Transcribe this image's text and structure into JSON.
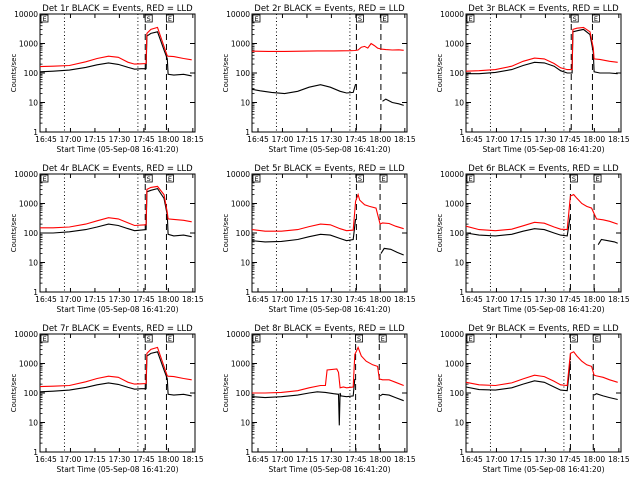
{
  "figure": {
    "x_ticks": [
      "16:45",
      "17:00",
      "17:15",
      "17:30",
      "17:45",
      "18:00",
      "18:15"
    ],
    "y_ticks": [
      "1",
      "10",
      "100",
      "1000",
      "10000"
    ],
    "ylabel": "Counts/sec",
    "xlabel": "Start Time (05-Sep-08 16:41:20)",
    "marker_labels": [
      "S",
      "E"
    ],
    "colors": {
      "events": "#000000",
      "lld": "#ff0000"
    }
  },
  "chart_data": [
    {
      "type": "line",
      "title": "Det 1r BLACK = Events, RED = LLD",
      "xlabel": "Start Time (05-Sep-08 16:41:20)",
      "ylabel": "Counts/sec",
      "x_unit": "minutes after 16:41:20",
      "xlim": [
        0,
        95
      ],
      "ylim": [
        1,
        10000
      ],
      "ylog": true,
      "series": [
        {
          "name": "Events",
          "x": [
            0,
            8,
            18,
            28,
            35,
            42,
            48,
            54,
            58,
            62,
            65,
            65.5,
            68,
            72,
            76,
            78,
            78.5,
            82,
            88,
            93
          ],
          "y": [
            110,
            115,
            125,
            155,
            190,
            220,
            195,
            155,
            135,
            140,
            140,
            1800,
            2200,
            2500,
            600,
            300,
            90,
            85,
            90,
            80
          ]
        },
        {
          "name": "LLD",
          "x": [
            0,
            8,
            18,
            28,
            35,
            42,
            48,
            54,
            58,
            62,
            65,
            65.5,
            68,
            72,
            76,
            78,
            78.5,
            82,
            88,
            93
          ],
          "y": [
            165,
            170,
            180,
            240,
            310,
            370,
            340,
            230,
            200,
            205,
            210,
            2200,
            3000,
            3500,
            800,
            380,
            370,
            360,
            310,
            280
          ]
        }
      ],
      "markers": {
        "dotted_x": [
          15,
          60
        ],
        "dashed_x": [
          64.5,
          77.5
        ],
        "S_x": 64.5,
        "E_x": 77.5
      }
    },
    {
      "type": "line",
      "title": "Det 2r BLACK = Events, RED = LLD",
      "xlabel": "Start Time (05-Sep-08 16:41:20)",
      "ylabel": "Counts/sec",
      "x_unit": "minutes after 16:41:20",
      "xlim": [
        0,
        95
      ],
      "ylim": [
        1,
        10000
      ],
      "ylog": true,
      "series": [
        {
          "name": "Events",
          "x": [
            0,
            5,
            12,
            20,
            28,
            35,
            42,
            48,
            54,
            58,
            62,
            63.5
          ],
          "y": [
            28,
            25,
            22,
            20,
            24,
            33,
            40,
            33,
            24,
            21,
            22,
            42
          ]
        },
        {
          "name": "Events (after)",
          "x": [
            80,
            82,
            86,
            90,
            93
          ],
          "y": [
            11,
            13,
            10,
            9,
            8
          ]
        },
        {
          "name": "LLD",
          "x": [
            0,
            10,
            20,
            30,
            40,
            50,
            60,
            63,
            65,
            67,
            69,
            71,
            73,
            75,
            77,
            79,
            82,
            86,
            90,
            93
          ],
          "y": [
            550,
            540,
            540,
            550,
            560,
            560,
            570,
            580,
            600,
            750,
            800,
            700,
            1000,
            850,
            700,
            650,
            620,
            600,
            610,
            590
          ]
        }
      ],
      "markers": {
        "dotted_x": [
          15,
          60
        ],
        "dashed_x": [
          64,
          79
        ],
        "S_x": 64,
        "E_x": 79
      }
    },
    {
      "type": "line",
      "title": "Det 3r BLACK = Events, RED = LLD",
      "xlabel": "Start Time (05-Sep-08 16:41:20)",
      "ylabel": "Counts/sec",
      "x_unit": "minutes after 16:41:20",
      "xlim": [
        0,
        95
      ],
      "ylim": [
        1,
        10000
      ],
      "ylog": true,
      "series": [
        {
          "name": "Events",
          "x": [
            0,
            8,
            18,
            28,
            35,
            42,
            48,
            54,
            58,
            62,
            65,
            65.5,
            68,
            72,
            76,
            78,
            78.5,
            82,
            88,
            93
          ],
          "y": [
            95,
            95,
            105,
            130,
            180,
            230,
            220,
            170,
            120,
            100,
            100,
            2500,
            2700,
            3000,
            2000,
            500,
            110,
            100,
            100,
            95
          ]
        },
        {
          "name": "LLD",
          "x": [
            0,
            8,
            18,
            28,
            35,
            42,
            48,
            54,
            58,
            62,
            65,
            65.5,
            68,
            72,
            76,
            78,
            78.5,
            82,
            88,
            93
          ],
          "y": [
            115,
            120,
            130,
            170,
            250,
            320,
            300,
            210,
            150,
            130,
            130,
            3000,
            3300,
            3500,
            2500,
            700,
            300,
            290,
            250,
            230
          ]
        }
      ],
      "markers": {
        "dotted_x": [
          15,
          60
        ],
        "dashed_x": [
          64.5,
          77.5
        ],
        "S_x": 64.5,
        "E_x": 77.5
      }
    },
    {
      "type": "line",
      "title": "Det 4r BLACK = Events, RED = LLD",
      "xlabel": "Start Time (05-Sep-08 16:41:20)",
      "ylabel": "Counts/sec",
      "x_unit": "minutes after 16:41:20",
      "xlim": [
        0,
        95
      ],
      "ylim": [
        1,
        10000
      ],
      "ylog": true,
      "series": [
        {
          "name": "Events",
          "x": [
            0,
            8,
            18,
            28,
            35,
            42,
            48,
            54,
            58,
            62,
            65,
            65.5,
            68,
            72,
            76,
            78,
            78.5,
            82,
            88,
            93
          ],
          "y": [
            100,
            100,
            110,
            130,
            160,
            200,
            180,
            140,
            120,
            125,
            130,
            2500,
            2800,
            3200,
            1500,
            400,
            90,
            80,
            85,
            75
          ]
        },
        {
          "name": "LLD",
          "x": [
            0,
            8,
            18,
            28,
            35,
            42,
            48,
            54,
            58,
            62,
            65,
            65.5,
            68,
            72,
            76,
            78,
            78.5,
            82,
            88,
            93
          ],
          "y": [
            150,
            150,
            160,
            200,
            260,
            330,
            300,
            220,
            180,
            185,
            190,
            3000,
            3500,
            3800,
            2000,
            500,
            300,
            290,
            270,
            240
          ]
        }
      ],
      "markers": {
        "dotted_x": [
          15,
          60
        ],
        "dashed_x": [
          64.5,
          77.5
        ],
        "S_x": 64.5,
        "E_x": 77.5
      }
    },
    {
      "type": "line",
      "title": "Det 5r BLACK = Events, RED = LLD",
      "xlabel": "Start Time (05-Sep-08 16:41:20)",
      "ylabel": "Counts/sec",
      "x_unit": "minutes after 16:41:20",
      "xlim": [
        0,
        95
      ],
      "ylim": [
        1,
        10000
      ],
      "ylog": true,
      "series": [
        {
          "name": "Events",
          "x": [
            0,
            8,
            18,
            28,
            35,
            42,
            48,
            54,
            58,
            62,
            63.5
          ],
          "y": [
            55,
            50,
            52,
            60,
            75,
            90,
            85,
            65,
            55,
            60,
            300
          ]
        },
        {
          "name": "Events (after)",
          "x": [
            79,
            81,
            85,
            89,
            93
          ],
          "y": [
            20,
            30,
            28,
            22,
            18
          ]
        },
        {
          "name": "LLD",
          "x": [
            0,
            8,
            18,
            28,
            35,
            42,
            48,
            54,
            58,
            62,
            63.5,
            65,
            66,
            69,
            72,
            76,
            78.5,
            80,
            84,
            88,
            93
          ],
          "y": [
            130,
            115,
            115,
            130,
            165,
            200,
            190,
            140,
            120,
            125,
            1200,
            2000,
            1300,
            900,
            800,
            700,
            200,
            220,
            210,
            170,
            140
          ]
        }
      ],
      "markers": {
        "dotted_x": [
          15,
          60
        ],
        "dashed_x": [
          64,
          78.5
        ],
        "S_x": 64,
        "E_x": 78.5
      }
    },
    {
      "type": "line",
      "title": "Det 6r BLACK = Events, RED = LLD",
      "xlabel": "Start Time (05-Sep-08 16:41:20)",
      "ylabel": "Counts/sec",
      "x_unit": "minutes after 16:41:20",
      "xlim": [
        0,
        95
      ],
      "ylim": [
        1,
        10000
      ],
      "ylog": true,
      "series": [
        {
          "name": "Events",
          "x": [
            0,
            8,
            18,
            28,
            35,
            42,
            48,
            54,
            58,
            62,
            64
          ],
          "y": [
            100,
            85,
            80,
            90,
            115,
            140,
            130,
            100,
            85,
            80,
            400
          ]
        },
        {
          "name": "Events (after)",
          "x": [
            81,
            83,
            87,
            91,
            93
          ],
          "y": [
            40,
            60,
            55,
            50,
            45
          ]
        },
        {
          "name": "LLD",
          "x": [
            0,
            8,
            18,
            28,
            35,
            42,
            48,
            54,
            58,
            62,
            64,
            66,
            68,
            71,
            74,
            77,
            80,
            84,
            88,
            93
          ],
          "y": [
            170,
            130,
            120,
            135,
            175,
            230,
            215,
            160,
            135,
            130,
            1800,
            2000,
            1500,
            1000,
            800,
            700,
            300,
            280,
            250,
            200
          ]
        }
      ],
      "markers": {
        "dotted_x": [
          15,
          60
        ],
        "dashed_x": [
          64,
          78.5
        ],
        "S_x": 64,
        "E_x": 78.5
      }
    },
    {
      "type": "line",
      "title": "Det 7r BLACK = Events, RED = LLD",
      "xlabel": "Start Time (05-Sep-08 16:41:20)",
      "ylabel": "Counts/sec",
      "x_unit": "minutes after 16:41:20",
      "xlim": [
        0,
        95
      ],
      "ylim": [
        1,
        10000
      ],
      "ylog": true,
      "series": [
        {
          "name": "Events",
          "x": [
            0,
            8,
            18,
            28,
            35,
            42,
            48,
            54,
            58,
            62,
            65,
            65.5,
            68,
            72,
            76,
            78,
            78.5,
            82,
            88,
            93
          ],
          "y": [
            110,
            115,
            125,
            155,
            190,
            220,
            195,
            155,
            135,
            140,
            140,
            1800,
            2200,
            2500,
            600,
            300,
            90,
            85,
            90,
            80
          ]
        },
        {
          "name": "LLD",
          "x": [
            0,
            8,
            18,
            28,
            35,
            42,
            48,
            54,
            58,
            62,
            65,
            65.5,
            68,
            72,
            76,
            78,
            78.5,
            82,
            88,
            93
          ],
          "y": [
            165,
            170,
            180,
            240,
            310,
            370,
            340,
            230,
            200,
            205,
            210,
            2200,
            3000,
            3500,
            800,
            380,
            370,
            360,
            310,
            280
          ]
        }
      ],
      "markers": {
        "dotted_x": [
          15,
          60
        ],
        "dashed_x": [
          64.5,
          77.5
        ],
        "S_x": 64.5,
        "E_x": 77.5
      }
    },
    {
      "type": "line",
      "title": "Det 8r BLACK = Events, RED = LLD",
      "xlabel": "Start Time (05-Sep-08 16:41:20)",
      "ylabel": "Counts/sec",
      "x_unit": "minutes after 16:41:20",
      "xlim": [
        0,
        95
      ],
      "ylim": [
        1,
        10000
      ],
      "ylog": true,
      "series": [
        {
          "name": "Events",
          "x": [
            0,
            8,
            18,
            28,
            35,
            40,
            45,
            50,
            53,
            53.5,
            54,
            54.5,
            58,
            62,
            63
          ],
          "y": [
            75,
            70,
            75,
            85,
            100,
            110,
            105,
            95,
            90,
            8,
            100,
            80,
            75,
            80,
            300
          ]
        },
        {
          "name": "Events (after)",
          "x": [
            78.5,
            80,
            84,
            88,
            93
          ],
          "y": [
            80,
            90,
            85,
            70,
            55
          ]
        },
        {
          "name": "LLD",
          "x": [
            0,
            8,
            18,
            28,
            35,
            42,
            45,
            46,
            52,
            53,
            54,
            56,
            58,
            62,
            63,
            65,
            67,
            70,
            74,
            77,
            78,
            80,
            84,
            88,
            93
          ],
          "y": [
            100,
            100,
            105,
            120,
            150,
            180,
            180,
            600,
            650,
            500,
            150,
            160,
            150,
            160,
            2000,
            3500,
            1800,
            1200,
            900,
            800,
            300,
            280,
            280,
            230,
            180
          ]
        }
      ],
      "markers": {
        "dotted_x": [
          15,
          60
        ],
        "dashed_x": [
          63.5,
          78
        ],
        "S_x": 63.5,
        "E_x": 78
      }
    },
    {
      "type": "line",
      "title": "Det 9r BLACK = Events, RED = LLD",
      "xlabel": "Start Time (05-Sep-08 16:41:20)",
      "ylabel": "Counts/sec",
      "x_unit": "minutes after 16:41:20",
      "xlim": [
        0,
        95
      ],
      "ylim": [
        1,
        10000
      ],
      "ylog": true,
      "series": [
        {
          "name": "Events",
          "x": [
            0,
            8,
            18,
            28,
            35,
            42,
            48,
            54,
            58,
            62,
            64
          ],
          "y": [
            160,
            130,
            125,
            150,
            200,
            260,
            230,
            160,
            125,
            120,
            1200
          ]
        },
        {
          "name": "Events (after)",
          "x": [
            78.5,
            80,
            84,
            88,
            93
          ],
          "y": [
            85,
            95,
            80,
            70,
            60
          ]
        },
        {
          "name": "LLD",
          "x": [
            0,
            8,
            18,
            28,
            35,
            42,
            48,
            54,
            58,
            62,
            64,
            66,
            68,
            71,
            74,
            77,
            78.5,
            80,
            84,
            88,
            93
          ],
          "y": [
            230,
            190,
            180,
            220,
            300,
            400,
            360,
            250,
            190,
            180,
            2200,
            2500,
            1800,
            1200,
            900,
            800,
            400,
            380,
            340,
            280,
            230
          ]
        }
      ],
      "markers": {
        "dotted_x": [
          15,
          60
        ],
        "dashed_x": [
          64,
          78
        ],
        "S_x": 64,
        "E_x": 78
      }
    }
  ]
}
